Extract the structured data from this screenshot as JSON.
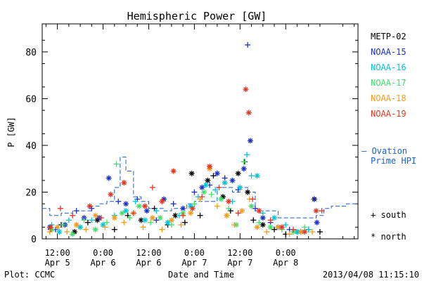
{
  "chart_data": {
    "type": "scatter",
    "title": "Hemispheric Power [GW]",
    "xlabel": "Date and Time",
    "ylabel": "P [GW]",
    "ylim": [
      0,
      92
    ],
    "yticks": [
      0,
      20,
      40,
      60,
      80
    ],
    "xlim": [
      8,
      91
    ],
    "xticks": [
      {
        "x": 12,
        "line1": "12:00",
        "line2": "Apr 5"
      },
      {
        "x": 24,
        "line1": "0:00",
        "line2": "Apr 6"
      },
      {
        "x": 36,
        "line1": "12:00",
        "line2": "Apr 6"
      },
      {
        "x": 48,
        "line1": "0:00",
        "line2": "Apr 7"
      },
      {
        "x": 60,
        "line1": "12:00",
        "line2": "Apr 7"
      },
      {
        "x": 72,
        "line1": "0:00",
        "line2": "Apr 8"
      }
    ],
    "x_units": "hours since 2013-04-05 00:00 UTC",
    "legend_position": "right",
    "series": [
      {
        "name": "METP-02",
        "color": "#000000",
        "points": [
          [
            10.3,
            4,
            "s"
          ],
          [
            13,
            6,
            "s"
          ],
          [
            16.5,
            3,
            "n"
          ],
          [
            20,
            7,
            "s"
          ],
          [
            22.5,
            8,
            "n"
          ],
          [
            27,
            4,
            "s"
          ],
          [
            30.5,
            10,
            "s"
          ],
          [
            34,
            8,
            "n"
          ],
          [
            37.5,
            13,
            "s"
          ],
          [
            41,
            6,
            "s"
          ],
          [
            43,
            10,
            "n"
          ],
          [
            45.5,
            7,
            "s"
          ],
          [
            47.3,
            28,
            "n"
          ],
          [
            49.5,
            10,
            "s"
          ],
          [
            51.5,
            25,
            "n"
          ],
          [
            53,
            27,
            "s"
          ],
          [
            55.5,
            18,
            "n"
          ],
          [
            57.5,
            12,
            "s"
          ],
          [
            59.5,
            28,
            "n"
          ],
          [
            61.2,
            33,
            "s"
          ],
          [
            62,
            20,
            "n"
          ],
          [
            63.5,
            8,
            "s"
          ],
          [
            66,
            6,
            "n"
          ],
          [
            69,
            4,
            "s"
          ],
          [
            72,
            2,
            "s"
          ],
          [
            75,
            3,
            "n"
          ],
          [
            78,
            4,
            "s"
          ],
          [
            79.5,
            17,
            "n"
          ],
          [
            81,
            3,
            "s"
          ]
        ]
      },
      {
        "name": "NOAA-15",
        "color": "#1a2fc8",
        "points": [
          [
            10,
            5,
            "n"
          ],
          [
            11.5,
            4,
            "s"
          ],
          [
            14,
            6,
            "n"
          ],
          [
            17,
            12,
            "s"
          ],
          [
            19,
            9,
            "n"
          ],
          [
            21,
            13,
            "s"
          ],
          [
            23,
            9,
            "n"
          ],
          [
            25.5,
            26,
            "n"
          ],
          [
            28,
            16,
            "s"
          ],
          [
            30,
            15,
            "n"
          ],
          [
            33,
            17,
            "s"
          ],
          [
            35.5,
            12,
            "n"
          ],
          [
            38,
            8,
            "s"
          ],
          [
            40,
            17,
            "n"
          ],
          [
            42.5,
            15,
            "s"
          ],
          [
            45,
            13,
            "n"
          ],
          [
            48,
            20,
            "s"
          ],
          [
            50,
            22,
            "n"
          ],
          [
            52,
            23,
            "s"
          ],
          [
            54,
            28,
            "n"
          ],
          [
            56,
            26,
            "s"
          ],
          [
            58,
            25,
            "n"
          ],
          [
            59.5,
            21,
            "s"
          ],
          [
            61,
            30,
            "n"
          ],
          [
            62,
            83,
            "s"
          ],
          [
            62.7,
            42,
            "n"
          ],
          [
            64,
            13,
            "s"
          ],
          [
            66,
            9,
            "n"
          ],
          [
            68,
            7,
            "s"
          ],
          [
            70,
            5,
            "n"
          ],
          [
            73,
            4,
            "s"
          ],
          [
            76,
            3,
            "n"
          ],
          [
            79.5,
            17,
            "s"
          ],
          [
            80.2,
            7,
            "n"
          ]
        ]
      },
      {
        "name": "NOAA-16",
        "color": "#00c4d8",
        "points": [
          [
            10.5,
            6,
            "s"
          ],
          [
            12.5,
            3,
            "n"
          ],
          [
            15,
            8,
            "s"
          ],
          [
            18,
            5,
            "n"
          ],
          [
            21,
            8,
            "s"
          ],
          [
            24,
            6,
            "n"
          ],
          [
            27,
            10,
            "s"
          ],
          [
            30,
            12,
            "n"
          ],
          [
            32.5,
            16,
            "s"
          ],
          [
            35,
            8,
            "n"
          ],
          [
            38,
            12,
            "s"
          ],
          [
            41,
            7,
            "n"
          ],
          [
            44,
            10,
            "s"
          ],
          [
            47,
            14,
            "n"
          ],
          [
            49,
            18,
            "s"
          ],
          [
            51,
            23,
            "n"
          ],
          [
            53.5,
            21,
            "s"
          ],
          [
            56,
            24,
            "n"
          ],
          [
            58,
            16,
            "s"
          ],
          [
            60,
            22,
            "n"
          ],
          [
            61.8,
            36,
            "s"
          ],
          [
            63,
            27,
            "s"
          ],
          [
            64.5,
            27,
            "n"
          ],
          [
            66,
            11,
            "s"
          ],
          [
            69,
            9,
            "n"
          ],
          [
            72,
            6,
            "s"
          ],
          [
            75,
            3,
            "n"
          ],
          [
            78,
            4,
            "s"
          ]
        ]
      },
      {
        "name": "NOAA-17",
        "color": "#42e06a",
        "points": [
          [
            10.5,
            4,
            "n"
          ],
          [
            13.5,
            6,
            "s"
          ],
          [
            16,
            2,
            "n"
          ],
          [
            19,
            8,
            "s"
          ],
          [
            22,
            4,
            "n"
          ],
          [
            25,
            7,
            "s"
          ],
          [
            27.5,
            32,
            "s"
          ],
          [
            29,
            11,
            "n"
          ],
          [
            31,
            9,
            "s"
          ],
          [
            33.5,
            14,
            "n"
          ],
          [
            36.5,
            7,
            "s"
          ],
          [
            39,
            9,
            "n"
          ],
          [
            42,
            6,
            "s"
          ],
          [
            45,
            11,
            "n"
          ],
          [
            48,
            15,
            "s"
          ],
          [
            50.5,
            20,
            "n"
          ],
          [
            52.5,
            19,
            "s"
          ],
          [
            55,
            17,
            "n"
          ],
          [
            57,
            13,
            "s"
          ],
          [
            59,
            6,
            "n"
          ],
          [
            61,
            33,
            "s"
          ],
          [
            63,
            14,
            "n"
          ],
          [
            65,
            7,
            "s"
          ],
          [
            68,
            5,
            "n"
          ],
          [
            71,
            4,
            "s"
          ],
          [
            74,
            3,
            "n"
          ],
          [
            77,
            5,
            "s"
          ]
        ]
      },
      {
        "name": "NOAA-18",
        "color": "#f59a1c",
        "points": [
          [
            10,
            3,
            "s"
          ],
          [
            12,
            5,
            "n"
          ],
          [
            14.5,
            3,
            "s"
          ],
          [
            17,
            6,
            "n"
          ],
          [
            19.5,
            4,
            "s"
          ],
          [
            22,
            10,
            "n"
          ],
          [
            24.5,
            5,
            "s"
          ],
          [
            27,
            9,
            "n"
          ],
          [
            29.5,
            7,
            "s"
          ],
          [
            32,
            11,
            "n"
          ],
          [
            34.5,
            5,
            "s"
          ],
          [
            37,
            9,
            "n"
          ],
          [
            39.5,
            4,
            "s"
          ],
          [
            42,
            8,
            "n"
          ],
          [
            44.5,
            6,
            "s"
          ],
          [
            47,
            11,
            "n"
          ],
          [
            49.5,
            17,
            "s"
          ],
          [
            52,
            30,
            "n"
          ],
          [
            54,
            14,
            "s"
          ],
          [
            56.5,
            10,
            "n"
          ],
          [
            58.5,
            6,
            "s"
          ],
          [
            60.5,
            12,
            "n"
          ],
          [
            62.5,
            17,
            "s"
          ],
          [
            64.5,
            5,
            "n"
          ],
          [
            67,
            3,
            "s"
          ],
          [
            70,
            5,
            "n"
          ],
          [
            73,
            2,
            "s"
          ],
          [
            76,
            3,
            "n"
          ],
          [
            79,
            3,
            "s"
          ]
        ]
      },
      {
        "name": "NOAA-19",
        "color": "#e8341e",
        "points": [
          [
            10.2,
            5,
            "n"
          ],
          [
            12.8,
            13,
            "s"
          ],
          [
            16,
            10,
            "s"
          ],
          [
            20.5,
            14,
            "n"
          ],
          [
            23.5,
            9,
            "s"
          ],
          [
            26,
            19,
            "n"
          ],
          [
            29.5,
            24,
            "n"
          ],
          [
            32,
            11,
            "s"
          ],
          [
            35,
            14,
            "n"
          ],
          [
            37,
            22,
            "s"
          ],
          [
            39.5,
            16,
            "n"
          ],
          [
            42.5,
            29,
            "n"
          ],
          [
            45,
            10,
            "s"
          ],
          [
            47.5,
            13,
            "n"
          ],
          [
            50,
            18,
            "s"
          ],
          [
            52,
            31,
            "n"
          ],
          [
            54.5,
            22,
            "s"
          ],
          [
            57,
            16,
            "n"
          ],
          [
            59.5,
            11,
            "s"
          ],
          [
            61.5,
            64,
            "n"
          ],
          [
            62.3,
            54,
            "n"
          ],
          [
            63.3,
            17,
            "s"
          ],
          [
            65,
            12,
            "n"
          ],
          [
            68,
            8,
            "s"
          ],
          [
            71,
            5,
            "n"
          ],
          [
            74,
            4,
            "s"
          ],
          [
            77,
            3,
            "n"
          ],
          [
            80,
            12,
            "n"
          ],
          [
            81.5,
            12,
            "s"
          ]
        ]
      },
      {
        "name": "Ovation Prime HPI",
        "color": "#1a5fd0",
        "style": "step",
        "points": [
          [
            8,
            13
          ],
          [
            10,
            10
          ],
          [
            13,
            11
          ],
          [
            16,
            12
          ],
          [
            19,
            12
          ],
          [
            21,
            14
          ],
          [
            23,
            15
          ],
          [
            25,
            16
          ],
          [
            27,
            22
          ],
          [
            28.5,
            35
          ],
          [
            30,
            29
          ],
          [
            32,
            18
          ],
          [
            34,
            16
          ],
          [
            36,
            13
          ],
          [
            38,
            13
          ],
          [
            40,
            12
          ],
          [
            42,
            13
          ],
          [
            44,
            13
          ],
          [
            46,
            15
          ],
          [
            48,
            16
          ],
          [
            50,
            16
          ],
          [
            52,
            16
          ],
          [
            54,
            22
          ],
          [
            56,
            22
          ],
          [
            58,
            20
          ],
          [
            60,
            22
          ],
          [
            62,
            20
          ],
          [
            64,
            12
          ],
          [
            66,
            12
          ],
          [
            68,
            12
          ],
          [
            70,
            9
          ],
          [
            72,
            9
          ],
          [
            75,
            9
          ],
          [
            78,
            9
          ],
          [
            80,
            10
          ],
          [
            82,
            13
          ],
          [
            84,
            14
          ],
          [
            86,
            14
          ],
          [
            88,
            15
          ],
          [
            90,
            15
          ]
        ]
      }
    ],
    "legend_extra": {
      "line_series_prefix": "–",
      "line_series_line1": "Ovation",
      "line_series_line2": "Prime HPI",
      "marker_south": "+ south",
      "marker_north": "* north"
    }
  },
  "footer": {
    "left": "Plot: CCMC",
    "center": "Date and Time",
    "right": "2013/04/08 11:15:10"
  }
}
